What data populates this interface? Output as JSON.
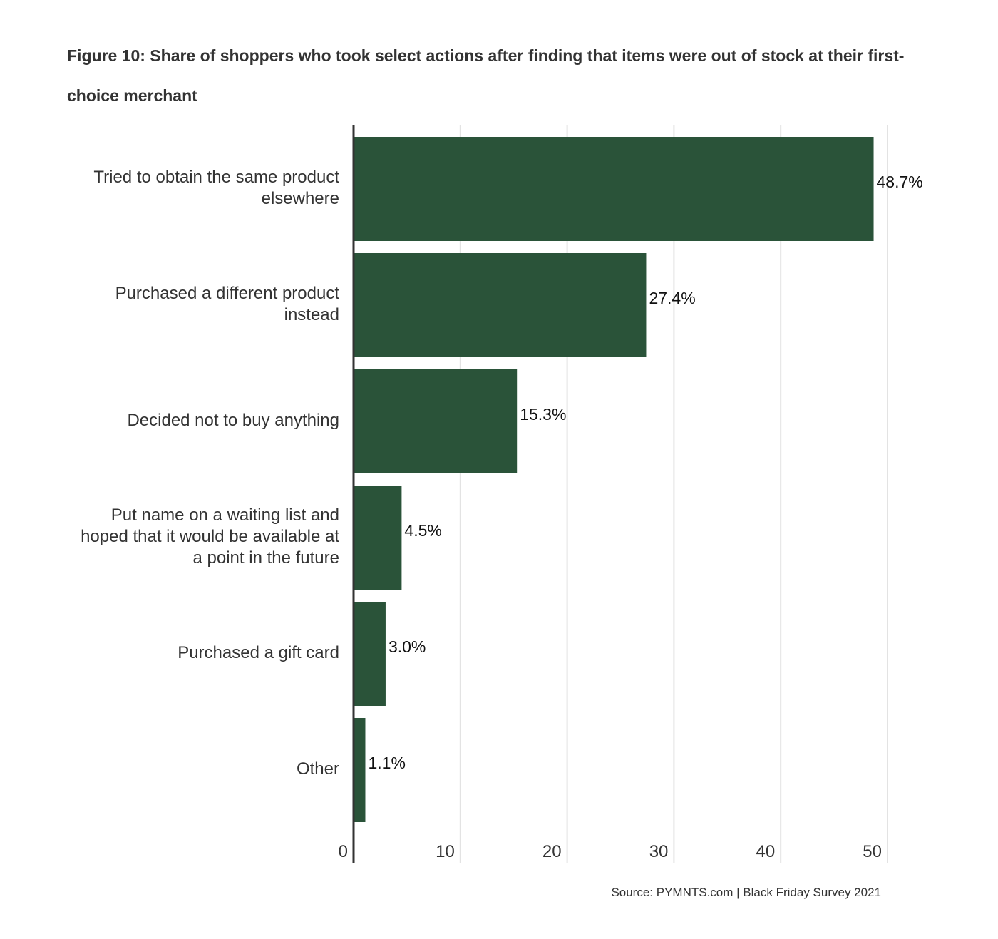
{
  "chart_data": {
    "type": "bar",
    "orientation": "horizontal",
    "title": "Figure 10: Share of shoppers who took select actions after finding that items were out of stock at their first-choice merchant",
    "categories": [
      "Tried to obtain the same product elsewhere",
      "Purchased a different product instead",
      "Decided not to buy anything",
      "Put name on a waiting list and hoped that it would be available at a point in the future",
      "Purchased a gift card",
      "Other"
    ],
    "category_lines": [
      [
        "Tried to obtain the same product",
        "elsewhere"
      ],
      [
        "Purchased a different product",
        "instead"
      ],
      [
        "Decided not to buy anything"
      ],
      [
        "Put name on a waiting list and",
        "hoped that it would be available at",
        "a point in the future"
      ],
      [
        "Purchased a gift card"
      ],
      [
        "Other"
      ]
    ],
    "values": [
      48.7,
      27.4,
      15.3,
      4.5,
      3.0,
      1.1
    ],
    "data_labels": [
      "48.7%",
      "27.4%",
      "15.3%",
      "4.5%",
      "3.0%",
      "1.1%"
    ],
    "xlim": [
      0,
      50
    ],
    "xticks": [
      "0",
      "10",
      "20",
      "30",
      "40",
      "50"
    ],
    "xlabel": "",
    "ylabel": "",
    "grid": true,
    "bar_color": "#2a5339",
    "source": "Source: PYMNTS.com | Black Friday Survey 2021"
  }
}
